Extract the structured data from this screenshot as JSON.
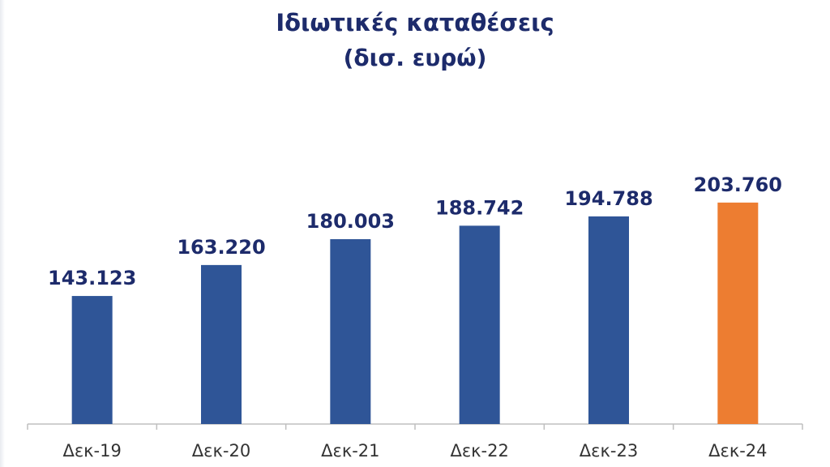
{
  "chart_data": {
    "type": "bar",
    "title": "Ιδιωτικές καταθέσεις",
    "subtitle": "(δισ. ευρώ)",
    "categories": [
      "Δεκ-19",
      "Δεκ-20",
      "Δεκ-21",
      "Δεκ-22",
      "Δεκ-23",
      "Δεκ-24"
    ],
    "values": [
      143123,
      163220,
      180003,
      188742,
      194788,
      203760
    ],
    "data_labels": [
      "143.123",
      "163.220",
      "180.003",
      "188.742",
      "194.788",
      "203.760"
    ],
    "bar_colors": [
      "#2f5597",
      "#2f5597",
      "#2f5597",
      "#2f5597",
      "#2f5597",
      "#ed7d31"
    ],
    "xlabel": "",
    "ylabel": "",
    "ylim": [
      0,
      210000
    ],
    "grid": false,
    "legend": "none"
  },
  "colors": {
    "title": "#1d2b6b",
    "bar_default": "#2f5597",
    "bar_highlight": "#ed7d31",
    "axis": "#bfbfbf"
  }
}
